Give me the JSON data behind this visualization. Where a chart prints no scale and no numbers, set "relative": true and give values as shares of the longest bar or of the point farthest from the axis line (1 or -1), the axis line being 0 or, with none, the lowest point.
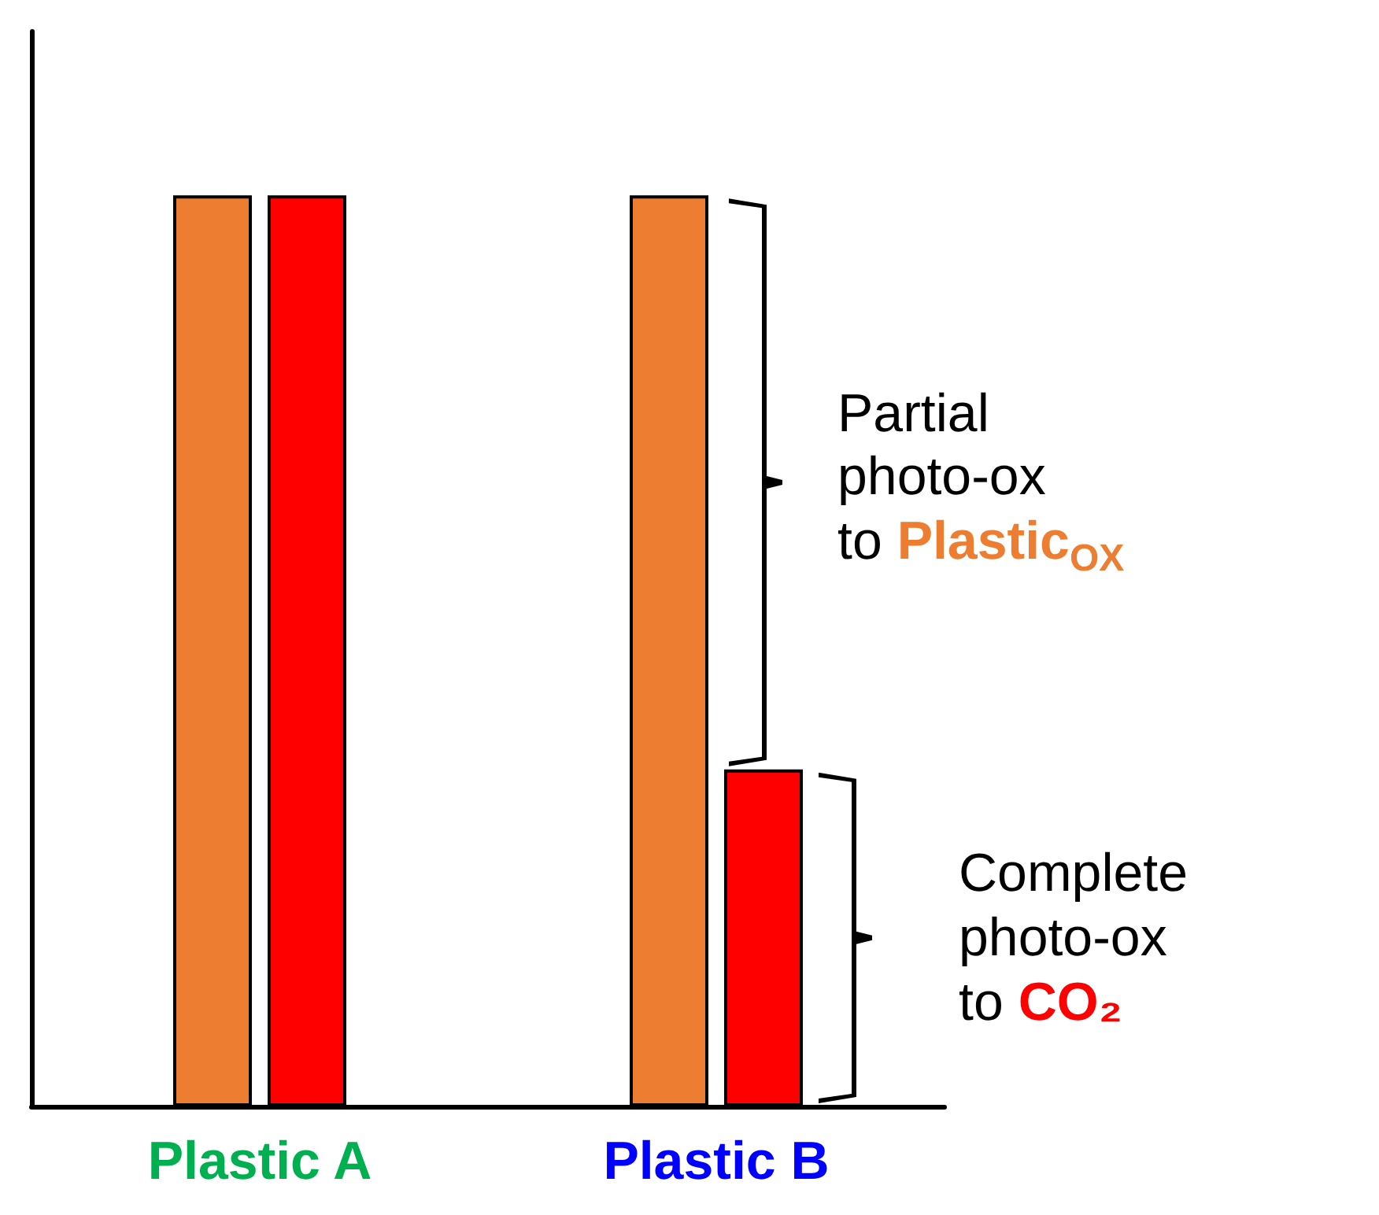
{
  "chart_data": {
    "type": "bar",
    "relative": true,
    "categories": [
      "Plastic A",
      "Plastic B"
    ],
    "series": [
      {
        "color": "#ed7d31",
        "values": [
          1,
          1
        ]
      },
      {
        "color": "#ff0000",
        "values": [
          1,
          0.37
        ]
      }
    ],
    "annotations": [
      "Partial photo-ox to Plastic$_{OX}$",
      "Complete photo-ox to CO₂"
    ]
  }
}
